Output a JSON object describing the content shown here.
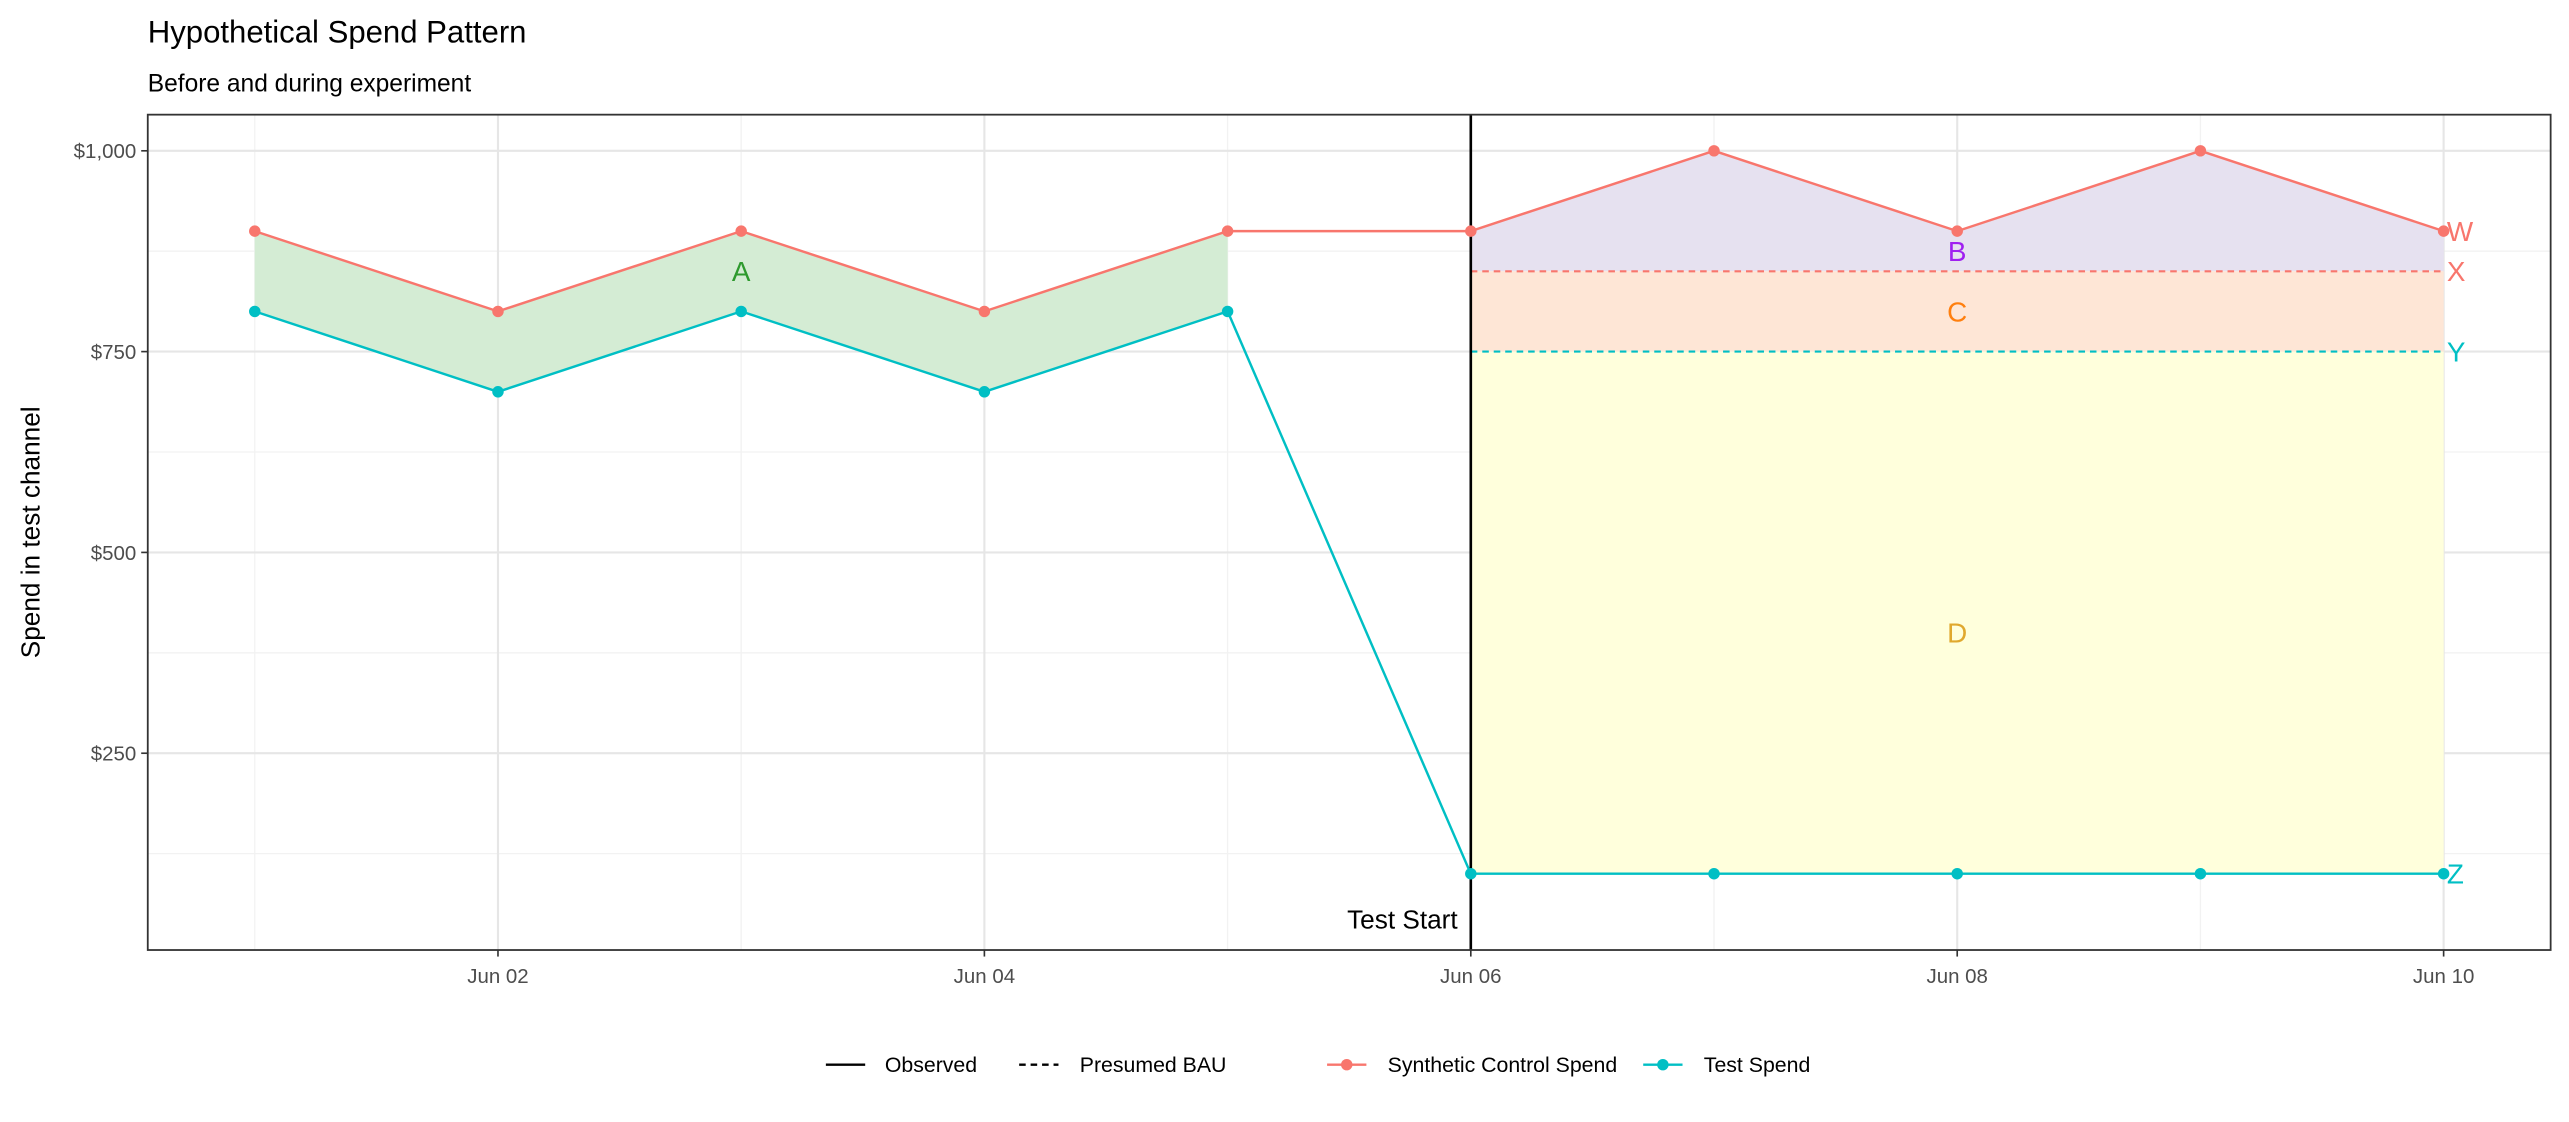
{
  "chart_data": {
    "type": "line",
    "title": "Hypothetical Spend Pattern",
    "subtitle": "Before and during experiment",
    "xlabel": "",
    "ylabel": "Spend in test channel",
    "x": [
      1,
      2,
      3,
      4,
      5,
      6,
      7,
      8,
      9,
      10
    ],
    "xlim": [
      0.56,
      10.44
    ],
    "ylim": [
      5,
      1045
    ],
    "x_ticks": [
      {
        "value": 2,
        "label": "Jun 02"
      },
      {
        "value": 4,
        "label": "Jun 04"
      },
      {
        "value": 6,
        "label": "Jun 06"
      },
      {
        "value": 8,
        "label": "Jun 08"
      },
      {
        "value": 10,
        "label": "Jun 10"
      }
    ],
    "y_ticks": [
      {
        "value": 250,
        "label": "$250"
      },
      {
        "value": 500,
        "label": "$500"
      },
      {
        "value": 750,
        "label": "$750"
      },
      {
        "value": 1000,
        "label": "$1,000"
      }
    ],
    "grid": true,
    "series": [
      {
        "name": "Synthetic Control Spend",
        "color": "#F8766D",
        "values": [
          900,
          800,
          900,
          800,
          900,
          900,
          1000,
          900,
          1000,
          900
        ]
      },
      {
        "name": "Test Spend",
        "color": "#00BFC4",
        "values": [
          800,
          700,
          800,
          700,
          800,
          100,
          100,
          100,
          100,
          100
        ]
      }
    ],
    "bau_lines": [
      {
        "name": "Synthetic BAU",
        "color": "#F8766D",
        "value": 850,
        "from": 6,
        "to": 10
      },
      {
        "name": "Test BAU",
        "color": "#00BFC4",
        "value": 750,
        "from": 6,
        "to": 10
      }
    ],
    "regions": [
      {
        "label": "A",
        "fill": "#d4ecd4",
        "label_color": "#2e9a2e",
        "label_x": 3,
        "label_y": 850
      },
      {
        "label": "B",
        "fill": "#e6e1f0",
        "label_color": "#a020f0",
        "label_x": 8,
        "label_y": 875
      },
      {
        "label": "C",
        "fill": "#fee6d6",
        "label_color": "#ff7f0e",
        "label_x": 8,
        "label_y": 800
      },
      {
        "label": "D",
        "fill": "#ffffdc",
        "label_color": "#e0a82e",
        "label_x": 8,
        "label_y": 400
      }
    ],
    "end_labels": [
      {
        "text": "W",
        "value": 900,
        "color": "#F8766D"
      },
      {
        "text": "X",
        "value": 850,
        "color": "#F8766D"
      },
      {
        "text": "Y",
        "value": 750,
        "color": "#00BFC4"
      },
      {
        "text": "Z",
        "value": 100,
        "color": "#00BFC4"
      }
    ],
    "vline": {
      "x": 6,
      "label": "Test Start"
    },
    "legend": {
      "placement": "bottom",
      "linetype_items": [
        {
          "label": "Observed",
          "dash": false
        },
        {
          "label": "Presumed BAU",
          "dash": true
        }
      ],
      "color_items": [
        {
          "label": "Synthetic Control Spend",
          "color": "#F8766D"
        },
        {
          "label": "Test Spend",
          "color": "#00BFC4"
        }
      ]
    }
  }
}
